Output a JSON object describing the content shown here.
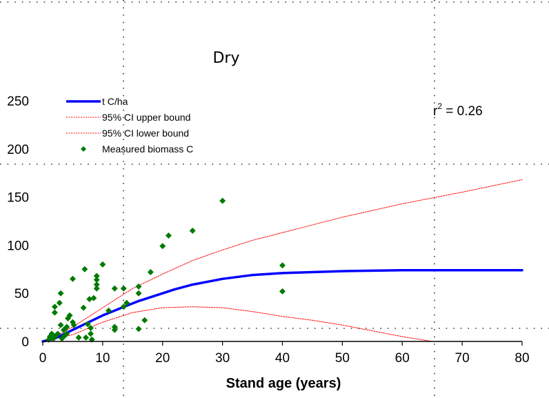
{
  "chart_data": {
    "type": "scatter",
    "title": "Dry",
    "xlabel": "Stand age (years)",
    "ylabel": "",
    "xlim": [
      0,
      80
    ],
    "ylim": [
      0,
      250
    ],
    "xticks": [
      0,
      10,
      20,
      30,
      40,
      50,
      60,
      70,
      80
    ],
    "yticks": [
      0,
      50,
      100,
      150,
      200,
      250
    ],
    "grid": false,
    "legend_position": "top-left",
    "annotation": {
      "prefix": "r",
      "sup": "2",
      "suffix": " = 0.26"
    },
    "series": [
      {
        "name": "t C/ha",
        "kind": "line",
        "color": "#0000ff",
        "x": [
          0,
          2,
          4,
          6,
          8,
          10,
          12,
          14,
          16,
          18,
          20,
          22,
          25,
          30,
          35,
          40,
          45,
          50,
          60,
          70,
          80
        ],
        "y": [
          0,
          3,
          9,
          15,
          21,
          27,
          32,
          37,
          42,
          46,
          50,
          54,
          59,
          65,
          69,
          71,
          72,
          73,
          74,
          74,
          74
        ]
      },
      {
        "name": "95% CI upper bound",
        "kind": "dashed-line",
        "color": "#ff0000",
        "x": [
          0,
          2,
          5,
          10,
          15,
          20,
          25,
          30,
          35,
          40,
          50,
          60,
          70,
          80
        ],
        "y": [
          0,
          5,
          15,
          35,
          55,
          70,
          84,
          95,
          105,
          113,
          129,
          143,
          155,
          168
        ]
      },
      {
        "name": "95% CI lower bound",
        "kind": "dashed-line",
        "color": "#ff0000",
        "x": [
          0,
          5,
          10,
          15,
          20,
          25,
          30,
          35,
          40,
          45,
          50,
          55,
          60,
          65,
          66
        ],
        "y": [
          0,
          7,
          20,
          30,
          35,
          36,
          35,
          31,
          26,
          22,
          17,
          11,
          5,
          0,
          0
        ]
      },
      {
        "name": "Measured biomass C",
        "kind": "markers",
        "color": "#007a00",
        "points": [
          [
            1,
            2
          ],
          [
            1.2,
            5
          ],
          [
            1.5,
            8
          ],
          [
            1.8,
            3
          ],
          [
            2,
            30
          ],
          [
            2,
            36
          ],
          [
            2.2,
            6
          ],
          [
            2.5,
            8
          ],
          [
            2.8,
            40
          ],
          [
            3,
            50
          ],
          [
            3,
            17
          ],
          [
            3.2,
            3
          ],
          [
            3.5,
            12
          ],
          [
            3.5,
            5
          ],
          [
            4,
            15
          ],
          [
            4,
            8
          ],
          [
            4.2,
            24
          ],
          [
            4.5,
            27
          ],
          [
            5,
            65
          ],
          [
            5,
            20
          ],
          [
            5.2,
            17
          ],
          [
            6,
            4
          ],
          [
            6.8,
            35
          ],
          [
            7,
            75
          ],
          [
            7.2,
            4
          ],
          [
            7.5,
            18
          ],
          [
            7.8,
            44
          ],
          [
            8,
            14
          ],
          [
            8,
            8
          ],
          [
            8.2,
            2
          ],
          [
            8.5,
            45
          ],
          [
            9,
            55
          ],
          [
            9,
            59
          ],
          [
            9,
            64
          ],
          [
            9,
            68
          ],
          [
            10,
            80
          ],
          [
            11,
            32
          ],
          [
            12,
            55
          ],
          [
            12,
            15
          ],
          [
            12,
            12
          ],
          [
            13.5,
            55
          ],
          [
            13.5,
            36
          ],
          [
            14,
            40
          ],
          [
            16,
            57
          ],
          [
            16,
            50
          ],
          [
            16,
            13
          ],
          [
            17,
            22
          ],
          [
            18,
            72
          ],
          [
            20,
            99
          ],
          [
            21,
            110
          ],
          [
            25,
            115
          ],
          [
            30,
            146
          ],
          [
            40,
            79
          ],
          [
            40,
            52
          ]
        ]
      }
    ]
  }
}
